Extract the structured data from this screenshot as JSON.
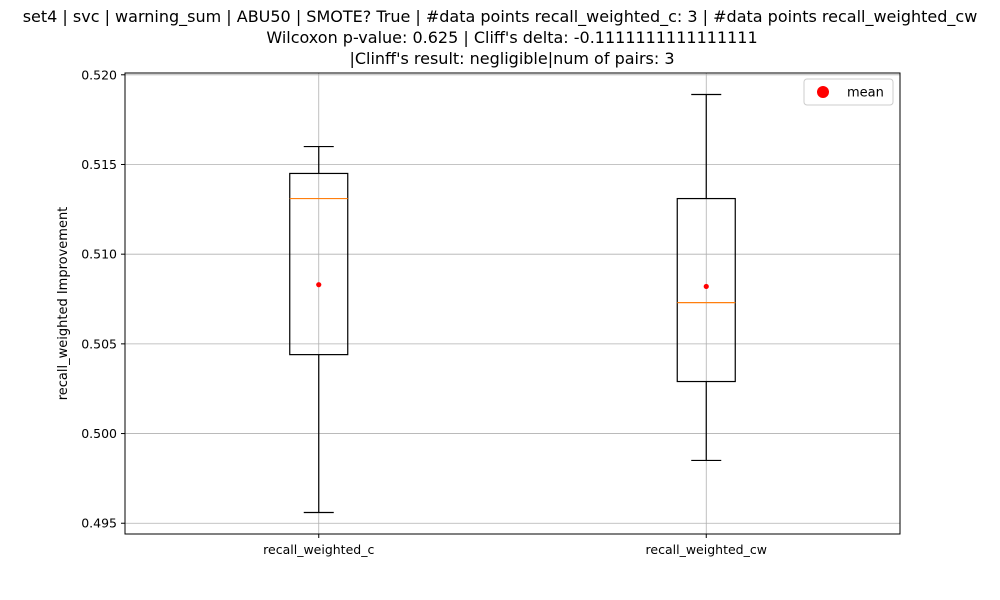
{
  "chart_data": {
    "type": "box",
    "title_lines": [
      "set4 | svc | warning_sum | ABU50 | SMOTE? True | #data points recall_weighted_c: 3 | #data points recall_weighted_cw",
      "Wilcoxon p-value: 0.625 | Cliff's delta: -0.1111111111111111",
      "|Clinff's result: negligible|num of pairs: 3"
    ],
    "xlabel": "",
    "ylabel": "recall_weighted Improvement",
    "ylim": [
      0.4944,
      0.5201
    ],
    "yticks": [
      0.495,
      0.5,
      0.505,
      0.51,
      0.515,
      0.52
    ],
    "ytick_labels": [
      "0.495",
      "0.500",
      "0.505",
      "0.510",
      "0.515",
      "0.520"
    ],
    "categories": [
      "recall_weighted_c",
      "recall_weighted_cw"
    ],
    "boxes": [
      {
        "category": "recall_weighted_c",
        "whisker_low": 0.4956,
        "q1": 0.5044,
        "median": 0.5131,
        "q3": 0.5145,
        "whisker_high": 0.516,
        "mean": 0.5083
      },
      {
        "category": "recall_weighted_cw",
        "whisker_low": 0.4985,
        "q1": 0.5029,
        "median": 0.5073,
        "q3": 0.5131,
        "whisker_high": 0.5189,
        "mean": 0.5082
      }
    ],
    "legend": {
      "position": "top-right",
      "entries": [
        {
          "label": "mean",
          "color": "#ff0000",
          "marker": "circle"
        }
      ]
    },
    "grid": true,
    "colors": {
      "box": "#000000",
      "median": "#ff7f0e",
      "mean": "#ff0000",
      "grid": "#b0b0b0"
    }
  }
}
